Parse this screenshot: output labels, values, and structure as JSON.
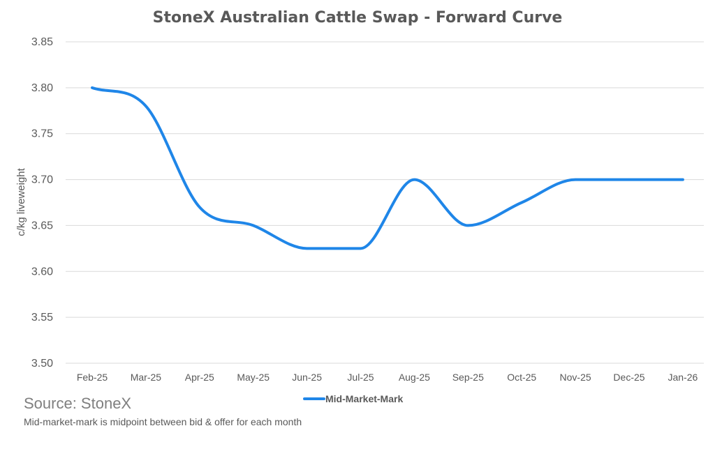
{
  "chart_data": {
    "type": "line",
    "title": "StoneX Australian Cattle Swap - Forward Curve",
    "ylabel": "c/kg liveweight",
    "xlabel": "",
    "categories": [
      "Feb-25",
      "Mar-25",
      "Apr-25",
      "May-25",
      "Jun-25",
      "Jul-25",
      "Aug-25",
      "Sep-25",
      "Oct-25",
      "Nov-25",
      "Dec-25",
      "Jan-26"
    ],
    "series": [
      {
        "name": "Mid-Market-Mark",
        "values": [
          3.8,
          3.78,
          3.67,
          3.65,
          3.625,
          3.625,
          3.7,
          3.65,
          3.675,
          3.7,
          3.7,
          3.7
        ],
        "color": "#1f86e8"
      }
    ],
    "ylim": [
      3.5,
      3.85
    ],
    "yticks": [
      "3.50",
      "3.55",
      "3.60",
      "3.65",
      "3.70",
      "3.75",
      "3.80",
      "3.85"
    ],
    "grid": true,
    "legend": "bottom-center"
  },
  "footer": {
    "source": "Source: StoneX",
    "note": "Mid-market-mark is midpoint between bid & offer for each month"
  },
  "colors": {
    "line": "#1f86e8",
    "grid": "#d9d9d9",
    "text": "#595959"
  }
}
